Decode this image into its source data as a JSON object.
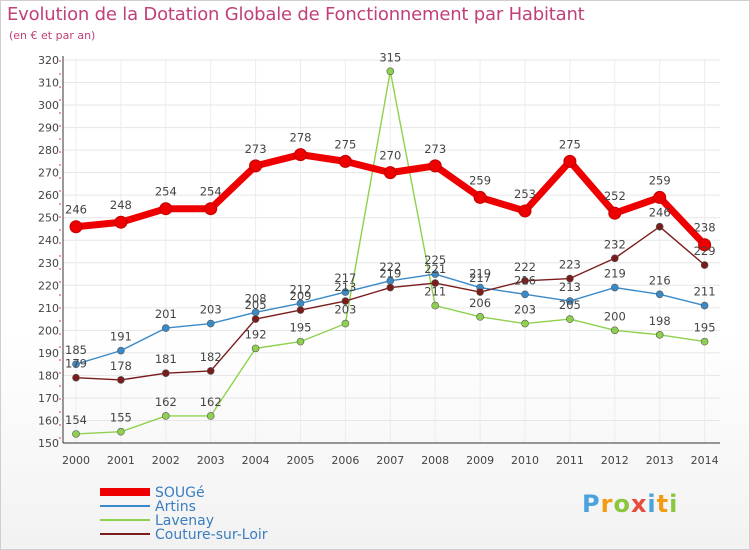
{
  "title": "Evolution de la Dotation Globale de Fonctionnement par Habitant",
  "subtitle": "(en € et par an)",
  "logo": {
    "letters": [
      "P",
      "r",
      "o",
      "x",
      "i",
      "t",
      "i"
    ],
    "colors": [
      "#4aa3df",
      "#f39c12",
      "#8cc63f",
      "#e74c3c",
      "#4aa3df",
      "#f39c12",
      "#8cc63f"
    ]
  },
  "chart_data": {
    "type": "line",
    "x": [
      "2000",
      "2001",
      "2002",
      "2003",
      "2004",
      "2005",
      "2006",
      "2007",
      "2008",
      "2009",
      "2010",
      "2011",
      "2012",
      "2013",
      "2014"
    ],
    "ylim": [
      150,
      320
    ],
    "yticks": [
      150,
      160,
      170,
      180,
      190,
      200,
      210,
      220,
      230,
      240,
      250,
      260,
      270,
      280,
      290,
      300,
      310,
      320
    ],
    "grid": true,
    "series": [
      {
        "name": "SOUGé",
        "color": "#ee0000",
        "width": 7,
        "radius": 6,
        "values": [
          246,
          248,
          254,
          254,
          273,
          278,
          275,
          270,
          273,
          259,
          253,
          275,
          252,
          259,
          238
        ],
        "labels": [
          "246",
          "248",
          "254",
          "254",
          "273",
          "278",
          "275",
          "270",
          "273",
          "259",
          "253",
          "275",
          "252",
          "259",
          "238"
        ]
      },
      {
        "name": "Artins",
        "color": "#3a8ac8",
        "width": 1.4,
        "radius": 3.5,
        "values": [
          185,
          191,
          201,
          203,
          208,
          212,
          217,
          222,
          225,
          219,
          216,
          213,
          219,
          216,
          211
        ],
        "labels": [
          "185",
          "191",
          "201",
          "203",
          "208",
          "212",
          "217",
          "222",
          "225",
          "219",
          "216",
          "213",
          "219",
          "216",
          "211"
        ]
      },
      {
        "name": "Lavenay",
        "color": "#8fd14f",
        "width": 1.4,
        "radius": 3.5,
        "values": [
          154,
          155,
          162,
          162,
          192,
          195,
          203,
          315,
          211,
          206,
          203,
          205,
          200,
          198,
          195
        ],
        "labels": [
          "154",
          "155",
          "162",
          "162",
          "192",
          "195",
          "203",
          "315",
          "211",
          "206",
          "203",
          "205",
          "200",
          "198",
          "195"
        ]
      },
      {
        "name": "Couture-sur-Loir",
        "color": "#7a1c1c",
        "width": 1.4,
        "radius": 3.5,
        "values": [
          179,
          178,
          181,
          182,
          205,
          209,
          213,
          219,
          221,
          217,
          222,
          223,
          232,
          246,
          229
        ],
        "labels": [
          "179",
          "178",
          "181",
          "182",
          "205",
          "209",
          "213",
          "219",
          "221",
          "217",
          "222",
          "223",
          "232",
          "246",
          "229"
        ]
      }
    ]
  }
}
